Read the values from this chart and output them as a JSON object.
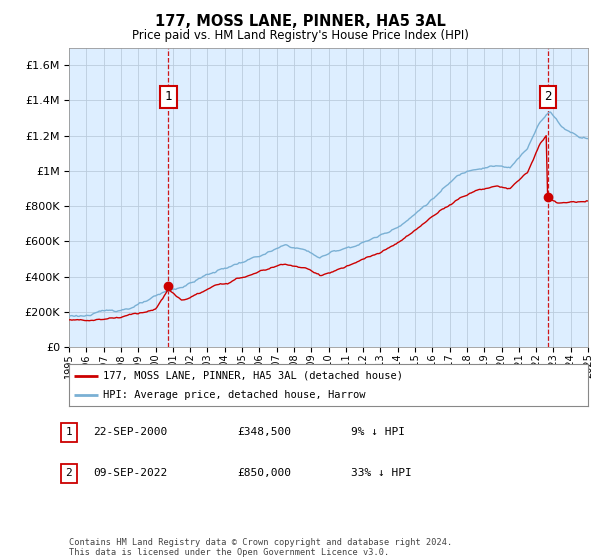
{
  "title": "177, MOSS LANE, PINNER, HA5 3AL",
  "subtitle": "Price paid vs. HM Land Registry's House Price Index (HPI)",
  "ytick_values": [
    0,
    200000,
    400000,
    600000,
    800000,
    1000000,
    1200000,
    1400000,
    1600000
  ],
  "ylim": [
    0,
    1700000
  ],
  "x_start_year": 1995,
  "x_end_year": 2025,
  "purchase1_year": 2000.75,
  "purchase1_price": 348500,
  "purchase1_label": "1",
  "purchase2_year": 2022.69,
  "purchase2_price": 850000,
  "purchase2_label": "2",
  "dashed_vline_color": "#cc0000",
  "red_line_color": "#cc0000",
  "blue_line_color": "#7ab0d4",
  "chart_bg_color": "#ddeeff",
  "grid_color": "#bbccdd",
  "background_color": "#ffffff",
  "legend_box1": "177, MOSS LANE, PINNER, HA5 3AL (detached house)",
  "legend_box2": "HPI: Average price, detached house, Harrow",
  "note1_num": "1",
  "note1_date": "22-SEP-2000",
  "note1_price": "£348,500",
  "note1_hpi": "9% ↓ HPI",
  "note2_num": "2",
  "note2_date": "09-SEP-2022",
  "note2_price": "£850,000",
  "note2_hpi": "33% ↓ HPI",
  "footer": "Contains HM Land Registry data © Crown copyright and database right 2024.\nThis data is licensed under the Open Government Licence v3.0."
}
